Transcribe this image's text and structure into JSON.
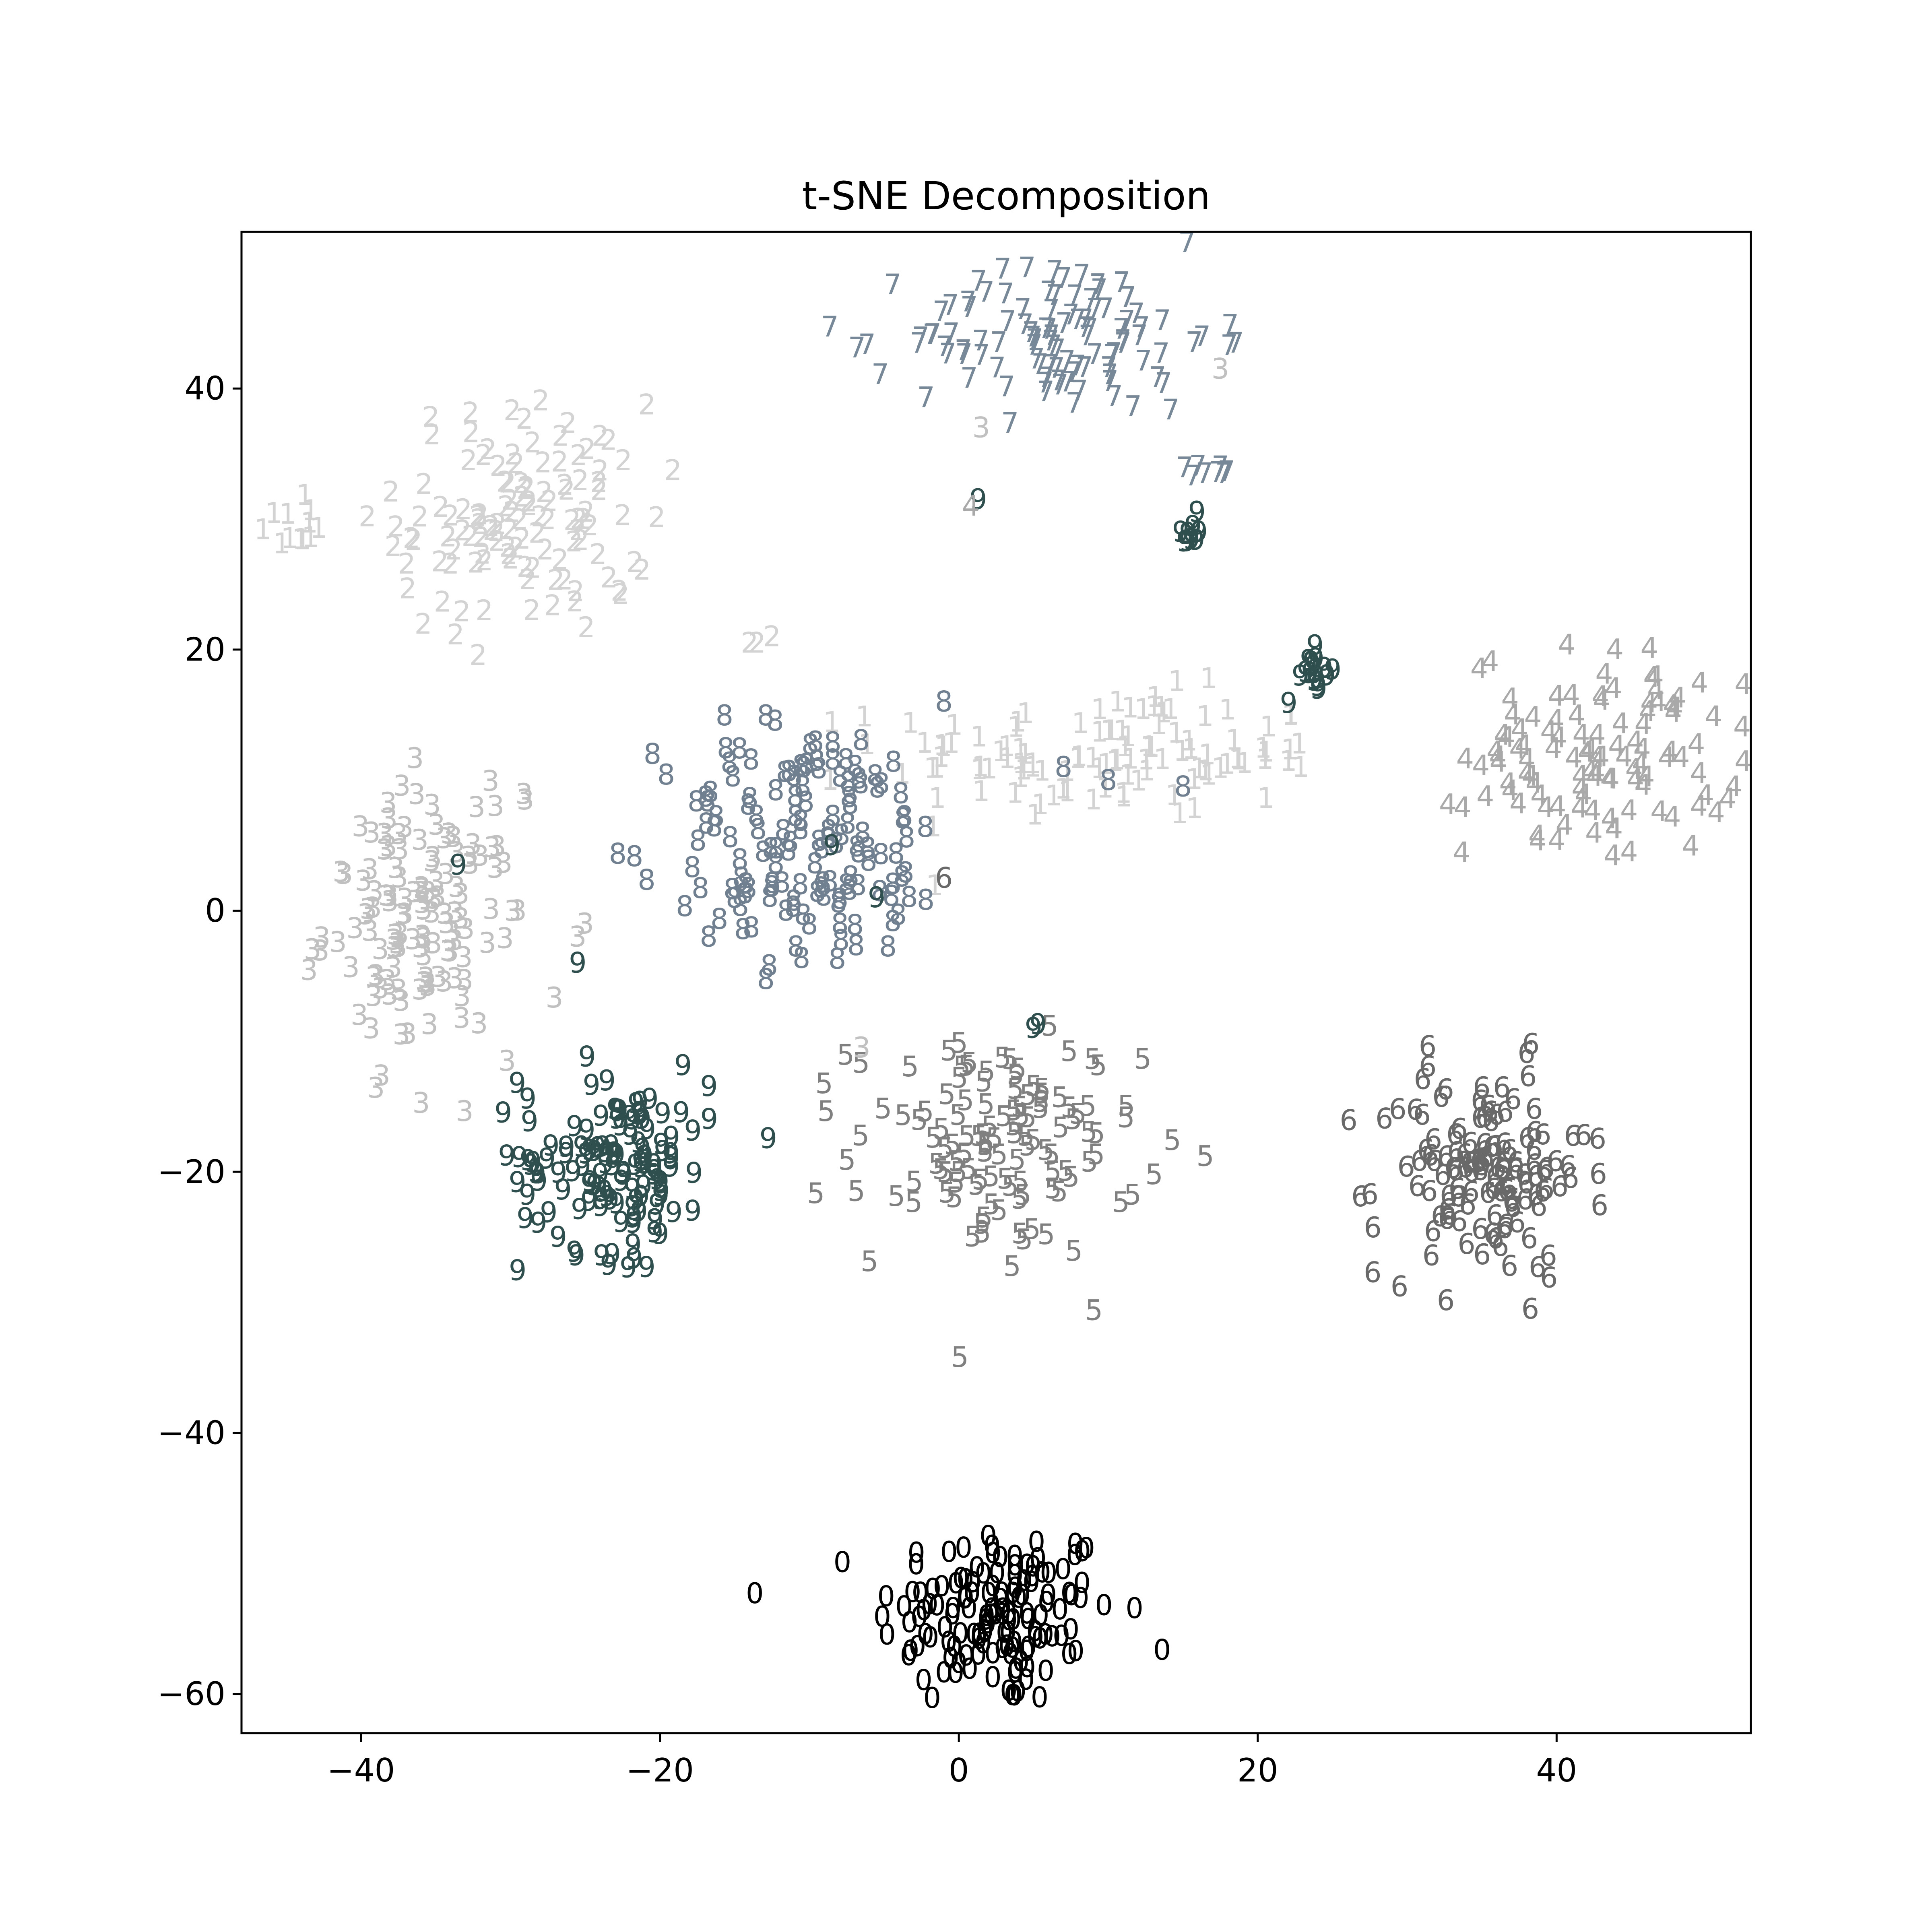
{
  "chart_data": {
    "type": "scatter",
    "title": "t-SNE Decomposition",
    "xlabel": "",
    "ylabel": "",
    "xlim": [
      -48,
      53
    ],
    "ylim": [
      -63,
      52
    ],
    "xticks": [
      -40,
      -20,
      0,
      20,
      40
    ],
    "xtick_labels": [
      "−40",
      "−20",
      "0",
      "20",
      "40"
    ],
    "yticks": [
      -60,
      -40,
      -20,
      0,
      20,
      40
    ],
    "ytick_labels": [
      "−60",
      "−40",
      "−20",
      "0",
      "20",
      "40"
    ],
    "grid": false,
    "legend": "none",
    "marker": "digit-text",
    "clusters": [
      {
        "label": "0",
        "color": "#000000",
        "cx": 2.5,
        "cy": -54,
        "sx": 4.0,
        "sy": 3.6,
        "count": 140
      },
      {
        "label": "1",
        "color": "#d3d3d3",
        "cx": 10,
        "cy": 12,
        "sx": 7.5,
        "sy": 2.4,
        "count": 110
      },
      {
        "label": "1",
        "color": "#d3d3d3",
        "cx": -45,
        "cy": 29.5,
        "sx": 0.9,
        "sy": 1.0,
        "count": 12
      },
      {
        "label": "2",
        "color": "#d3d3d3",
        "cx": -29,
        "cy": 30,
        "sx": 4.2,
        "sy": 4.5,
        "count": 120
      },
      {
        "label": "3",
        "color": "#c0c0c0",
        "cx": -36,
        "cy": -1,
        "sx": 3.2,
        "sy": 5.0,
        "count": 130
      },
      {
        "label": "4",
        "color": "#a9a9a9",
        "cx": 43,
        "cy": 12,
        "sx": 4.5,
        "sy": 4.0,
        "count": 110
      },
      {
        "label": "5",
        "color": "#808080",
        "cx": 2.5,
        "cy": -18,
        "sx": 4.8,
        "sy": 4.2,
        "count": 125
      },
      {
        "label": "6",
        "color": "#696969",
        "cx": 35,
        "cy": -20,
        "sx": 3.5,
        "sy": 4.0,
        "count": 130
      },
      {
        "label": "7",
        "color": "#778899",
        "cx": 7,
        "cy": 44,
        "sx": 5.0,
        "sy": 3.0,
        "count": 110
      },
      {
        "label": "7",
        "color": "#778899",
        "cx": 17,
        "cy": 33.5,
        "sx": 0.8,
        "sy": 0.4,
        "count": 8
      },
      {
        "label": "8",
        "color": "#708090",
        "cx": -10,
        "cy": 5,
        "sx": 4.8,
        "sy": 4.8,
        "count": 140
      },
      {
        "label": "9",
        "color": "#2f4f4f",
        "cx": -23,
        "cy": -19,
        "sx": 3.2,
        "sy": 3.6,
        "count": 130
      },
      {
        "label": "9",
        "color": "#2f4f4f",
        "cx": 24,
        "cy": 18,
        "sx": 0.6,
        "sy": 1.0,
        "count": 16
      },
      {
        "label": "9",
        "color": "#2f4f4f",
        "cx": 15.5,
        "cy": 29,
        "sx": 0.4,
        "sy": 0.6,
        "count": 10
      }
    ],
    "outliers": [
      {
        "label": "3",
        "color": "#c0c0c0",
        "x": 1.5,
        "y": 37
      },
      {
        "label": "3",
        "color": "#c0c0c0",
        "x": 17.5,
        "y": 41.5
      },
      {
        "label": "3",
        "color": "#c0c0c0",
        "x": -6.5,
        "y": -10.5
      },
      {
        "label": "3",
        "color": "#c0c0c0",
        "x": -29,
        "y": 8.5
      },
      {
        "label": "3",
        "color": "#c0c0c0",
        "x": -31,
        "y": 8
      },
      {
        "label": "3",
        "color": "#c0c0c0",
        "x": -29.5,
        "y": 0
      },
      {
        "label": "3",
        "color": "#c0c0c0",
        "x": -25.5,
        "y": -2
      },
      {
        "label": "3",
        "color": "#c0c0c0",
        "x": -25,
        "y": -1
      },
      {
        "label": "2",
        "color": "#d3d3d3",
        "x": -14,
        "y": 20.5
      },
      {
        "label": "2",
        "color": "#d3d3d3",
        "x": -13.5,
        "y": 20.5
      },
      {
        "label": "2",
        "color": "#d3d3d3",
        "x": -12.5,
        "y": 21
      },
      {
        "label": "9",
        "color": "#2f4f4f",
        "x": 1.3,
        "y": 31.5
      },
      {
        "label": "9",
        "color": "#2f4f4f",
        "x": -33.5,
        "y": 3.5
      },
      {
        "label": "9",
        "color": "#2f4f4f",
        "x": -25.5,
        "y": -4
      },
      {
        "label": "9",
        "color": "#2f4f4f",
        "x": -8.5,
        "y": 5
      },
      {
        "label": "9",
        "color": "#2f4f4f",
        "x": -5.5,
        "y": 1
      },
      {
        "label": "9",
        "color": "#2f4f4f",
        "x": 5,
        "y": -9
      },
      {
        "label": "9",
        "color": "#2f4f4f",
        "x": 5.3,
        "y": -8.7
      },
      {
        "label": "4",
        "color": "#a9a9a9",
        "x": 0.8,
        "y": 31
      },
      {
        "label": "8",
        "color": "#708090",
        "x": -20.5,
        "y": 12
      },
      {
        "label": "8",
        "color": "#708090",
        "x": -1,
        "y": 16
      },
      {
        "label": "8",
        "color": "#708090",
        "x": 7,
        "y": 11
      },
      {
        "label": "8",
        "color": "#708090",
        "x": 10,
        "y": 10
      },
      {
        "label": "8",
        "color": "#708090",
        "x": 15,
        "y": 9.5
      },
      {
        "label": "6",
        "color": "#696969",
        "x": -1,
        "y": 2.5
      },
      {
        "label": "1",
        "color": "#d3d3d3",
        "x": 9,
        "y": 8.5
      },
      {
        "label": "1",
        "color": "#d3d3d3",
        "x": 11,
        "y": 9
      }
    ]
  }
}
